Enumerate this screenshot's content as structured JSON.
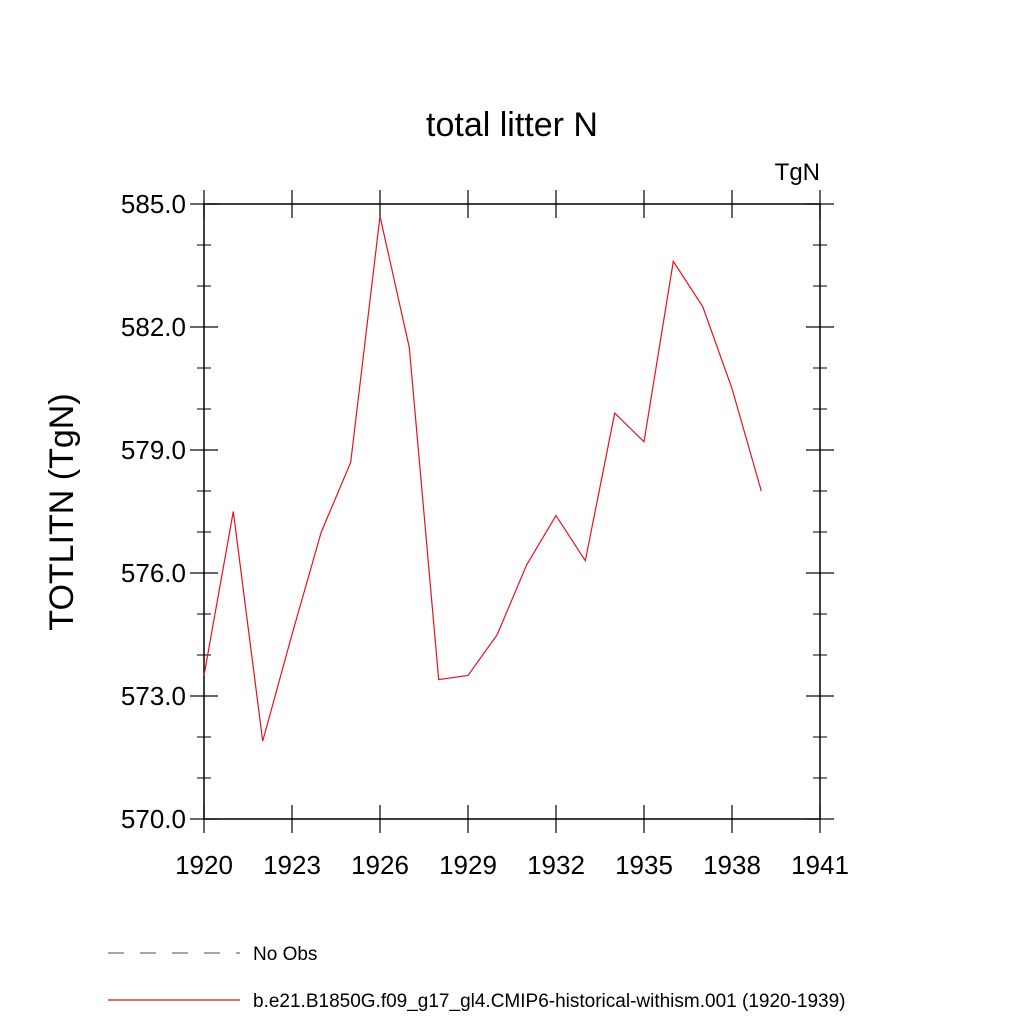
{
  "chart_data": {
    "type": "line",
    "title": "total litter N",
    "units_label": "TgN",
    "ylabel": "TOTLITN  (TgN)",
    "xlabel": "",
    "xlim": [
      1920,
      1941
    ],
    "ylim": [
      570,
      585
    ],
    "x_ticks": [
      1920,
      1923,
      1926,
      1929,
      1932,
      1935,
      1938,
      1941
    ],
    "y_ticks": [
      570,
      573,
      576,
      579,
      582,
      585
    ],
    "x_tick_labels": [
      "1920",
      "1923",
      "1926",
      "1929",
      "1932",
      "1935",
      "1938",
      "1941"
    ],
    "y_tick_labels": [
      "570.0",
      "573.0",
      "576.0",
      "579.0",
      "582.0",
      "585.0"
    ],
    "grid": false,
    "legend_position": "bottom-left",
    "series": [
      {
        "name": "b.e21.B1850G.f09_g17_gl4.CMIP6-historical-withism.001 (1920-1939)",
        "color": "#e8101e",
        "style": "solid",
        "x": [
          1920,
          1921,
          1922,
          1923,
          1924,
          1925,
          1926,
          1927,
          1928,
          1929,
          1930,
          1931,
          1932,
          1933,
          1934,
          1935,
          1936,
          1937,
          1938,
          1939
        ],
        "y": [
          573.5,
          577.5,
          571.9,
          574.5,
          577.0,
          578.7,
          584.7,
          581.5,
          573.4,
          573.5,
          574.5,
          576.2,
          577.4,
          576.3,
          579.9,
          579.2,
          583.6,
          582.5,
          580.5,
          578.0
        ]
      }
    ],
    "legend": [
      {
        "label": "No Obs",
        "color": "#6b6bb0",
        "style": "dashed"
      },
      {
        "label": "b.e21.B1850G.f09_g17_gl4.CMIP6-historical-withism.001 (1920-1939)",
        "color": "#e8101e",
        "style": "solid"
      }
    ]
  }
}
